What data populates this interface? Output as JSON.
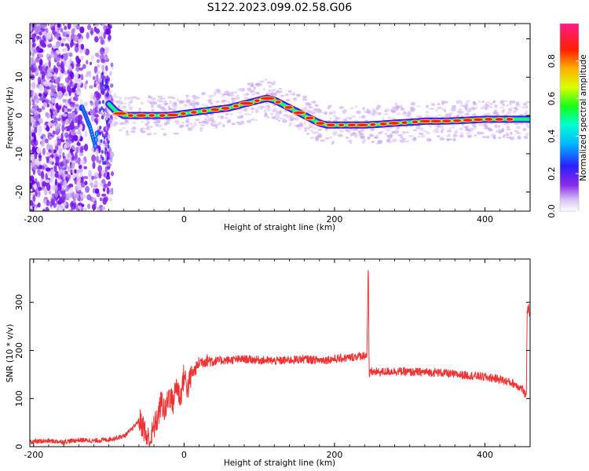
{
  "title": "S122.2023.099.02.58.G06",
  "chart_data": [
    {
      "type": "heatmap",
      "xlabel": "Height of straight line (km)",
      "ylabel": "Frequency (Hz)",
      "xlim": [
        -205,
        460
      ],
      "ylim": [
        -25,
        24
      ],
      "x_ticks": [
        -200,
        0,
        200,
        400
      ],
      "y_ticks": [
        -20,
        -10,
        0,
        10,
        20
      ],
      "colorbar": {
        "label": "Normalized spectral amplitude",
        "range": [
          0,
          1
        ],
        "ticks": [
          "0.0",
          "0.2",
          "0.4",
          "0.6",
          "0.8"
        ],
        "colors": [
          "#ffffff",
          "#c9a6f2",
          "#6a00e8",
          "#1f2bff",
          "#00c8ff",
          "#00ff7a",
          "#e6ff00",
          "#ff7f00",
          "#ff0000",
          "#ff1a7a"
        ]
      },
      "ridge": {
        "x": [
          -135,
          -125,
          -118,
          -110,
          -100,
          -90,
          -80,
          -60,
          -40,
          -20,
          0,
          20,
          40,
          60,
          80,
          100,
          110,
          120,
          130,
          140,
          150,
          160,
          170,
          180,
          190,
          200,
          220,
          240,
          260,
          280,
          300,
          320,
          340,
          360,
          380,
          400,
          420,
          440,
          460
        ],
        "y": [
          2,
          -3,
          -8,
          5,
          3,
          1,
          0,
          0,
          0,
          0,
          0.5,
          1,
          1.5,
          2,
          3,
          4,
          4.5,
          4,
          3,
          2,
          1,
          0,
          -1,
          -2,
          -2.5,
          -2.5,
          -2.5,
          -2.5,
          -2.3,
          -2,
          -1.8,
          -1.5,
          -1.5,
          -1.4,
          -1.2,
          -1,
          -1,
          -1,
          -1
        ]
      }
    },
    {
      "type": "line",
      "xlabel": "Height of straight line (km)",
      "ylabel": "SNR (10 * v/v)",
      "xlim": [
        -205,
        460
      ],
      "ylim": [
        0,
        390
      ],
      "x_ticks": [
        -200,
        0,
        200,
        400
      ],
      "y_ticks": [
        0,
        100,
        200,
        300
      ],
      "color": "#ef3333",
      "x": [
        -205,
        -180,
        -160,
        -140,
        -120,
        -100,
        -80,
        -70,
        -60,
        -55,
        -50,
        -45,
        -40,
        -35,
        -30,
        -25,
        -20,
        -15,
        -10,
        -5,
        0,
        5,
        10,
        15,
        20,
        30,
        40,
        60,
        80,
        100,
        120,
        140,
        160,
        180,
        200,
        220,
        240,
        243,
        245,
        246,
        248,
        250,
        260,
        280,
        300,
        320,
        340,
        360,
        380,
        400,
        420,
        440,
        450,
        455,
        456,
        458,
        460
      ],
      "y": [
        10,
        12,
        10,
        14,
        12,
        15,
        22,
        35,
        55,
        45,
        20,
        12,
        40,
        60,
        95,
        70,
        110,
        90,
        130,
        100,
        150,
        120,
        150,
        160,
        175,
        180,
        178,
        180,
        182,
        180,
        178,
        180,
        182,
        180,
        182,
        185,
        190,
        190,
        385,
        140,
        160,
        155,
        155,
        157,
        155,
        155,
        154,
        150,
        148,
        145,
        140,
        130,
        120,
        100,
        280,
        290,
        270
      ]
    }
  ]
}
